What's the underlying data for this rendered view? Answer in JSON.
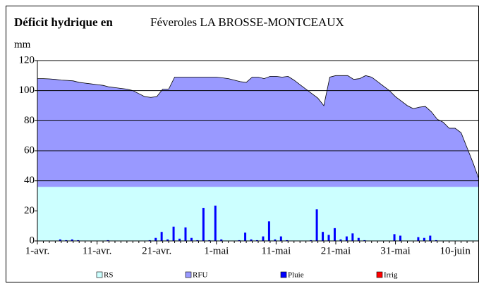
{
  "chart_data": {
    "type": "combo",
    "title": "Déficit hydrique en",
    "subtitle": "Féveroles LA BROSSE-MONTCEAUX",
    "y_label": "mm",
    "categories": [
      "1-avr.",
      null,
      null,
      null,
      null,
      null,
      null,
      null,
      null,
      null,
      "11-avr.",
      null,
      null,
      null,
      null,
      null,
      null,
      null,
      null,
      null,
      "21-avr.",
      null,
      null,
      null,
      null,
      null,
      null,
      null,
      null,
      null,
      "1-mai",
      null,
      null,
      null,
      null,
      null,
      null,
      null,
      null,
      null,
      "11-mai",
      null,
      null,
      null,
      null,
      null,
      null,
      null,
      null,
      null,
      "21-mai",
      null,
      null,
      null,
      null,
      null,
      null,
      null,
      null,
      null,
      "31-mai",
      null,
      null,
      null,
      null,
      null,
      null,
      null,
      null,
      null,
      "10-juin",
      null,
      null,
      null,
      null
    ],
    "ylim": [
      0,
      120
    ],
    "yticks": [
      0,
      20,
      40,
      60,
      80,
      100,
      120
    ],
    "grid": true,
    "legend": "bottom",
    "series": [
      {
        "name": "RS",
        "type": "area",
        "color": "#ccffff",
        "values": [
          36,
          36,
          36,
          36,
          36,
          36,
          36,
          36,
          36,
          36,
          36,
          36,
          36,
          36,
          36,
          36,
          36,
          36,
          36,
          36,
          36,
          36,
          36,
          36,
          36,
          36,
          36,
          36,
          36,
          36,
          36,
          36,
          36,
          36,
          36,
          36,
          36,
          36,
          36,
          36,
          36,
          36,
          36,
          36,
          36,
          36,
          36,
          36,
          36,
          36,
          36,
          36,
          36,
          36,
          36,
          36,
          36,
          36,
          36,
          36,
          36,
          36,
          36,
          36,
          36,
          36,
          36,
          36,
          36,
          36,
          36,
          36,
          36,
          36,
          36
        ]
      },
      {
        "name": "RFU",
        "type": "area",
        "color": "#9999ff",
        "values": [
          108,
          108,
          107.8,
          107.5,
          107,
          106.8,
          106.5,
          105.5,
          105,
          104.5,
          104,
          103.5,
          102.5,
          102,
          101.5,
          101,
          100,
          98,
          96,
          95.5,
          96,
          101,
          101,
          109,
          109,
          109,
          109,
          109,
          109,
          109,
          109,
          108.5,
          108,
          107,
          106,
          105.5,
          109,
          109,
          108,
          109.5,
          109.5,
          109,
          109.5,
          107,
          104,
          101,
          98,
          95,
          90,
          109,
          110,
          110,
          110,
          107.5,
          108,
          110,
          109,
          106,
          103,
          100,
          96,
          93,
          90,
          88,
          89,
          89.5,
          86,
          81,
          79,
          75,
          75,
          72,
          62,
          52,
          41
        ]
      },
      {
        "name": "Pluie",
        "type": "bar",
        "color": "#0000ff",
        "values": [
          0,
          0,
          0,
          0,
          1,
          0.5,
          1,
          0.5,
          0,
          0,
          0,
          0,
          0.5,
          0,
          0,
          0,
          0,
          0,
          0,
          0.5,
          2,
          6,
          1,
          9.5,
          1.5,
          9,
          2,
          0.5,
          22,
          0.5,
          23.5,
          1,
          0,
          0,
          0.5,
          5.5,
          1,
          0.5,
          3,
          13,
          1,
          3,
          0.5,
          0,
          0,
          0,
          0.5,
          21,
          6,
          4,
          8.5,
          1,
          3,
          5,
          2,
          0.5,
          0,
          0,
          0,
          0,
          4.5,
          3.5,
          0,
          0,
          2.5,
          2,
          3.5,
          0.5,
          0,
          0,
          0,
          0,
          0,
          0,
          0
        ]
      },
      {
        "name": "Irrig",
        "type": "bar",
        "color": "#ff0000",
        "values": [
          0,
          0,
          0,
          0,
          0,
          0,
          0,
          0,
          0,
          0,
          0,
          0,
          0,
          0,
          0,
          0,
          0,
          0,
          0,
          0,
          0,
          0,
          0,
          0,
          0,
          0,
          0,
          0,
          0,
          0,
          0,
          0,
          0,
          0,
          0,
          0,
          0,
          0,
          0,
          0,
          0,
          0,
          0,
          0,
          0,
          0,
          0,
          0,
          0,
          0,
          0,
          0,
          0,
          0,
          0,
          0,
          0,
          0,
          0,
          0,
          0,
          0,
          0,
          0,
          0,
          0,
          0,
          0,
          0,
          0,
          0,
          0,
          0,
          0,
          0
        ]
      }
    ]
  }
}
